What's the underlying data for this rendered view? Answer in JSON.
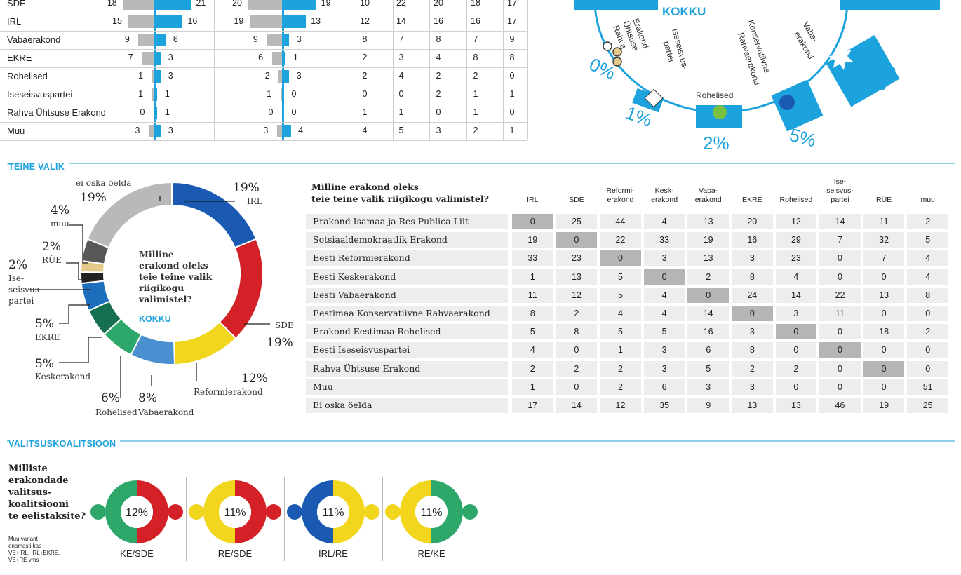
{
  "top_table": {
    "rows": [
      {
        "name": "SDE",
        "a1": "18",
        "a2": "21",
        "b1": "20",
        "b2": "19",
        "c": [
          "10",
          "22",
          "20",
          "18",
          "17"
        ]
      },
      {
        "name": "IRL",
        "a1": "15",
        "a2": "16",
        "b1": "19",
        "b2": "13",
        "c": [
          "12",
          "14",
          "16",
          "16",
          "17"
        ]
      },
      {
        "name": "Vabaerakond",
        "a1": "9",
        "a2": "6",
        "b1": "9",
        "b2": "3",
        "c": [
          "8",
          "7",
          "8",
          "7",
          "9"
        ]
      },
      {
        "name": "EKRE",
        "a1": "7",
        "a2": "3",
        "b1": "6",
        "b2": "1",
        "c": [
          "2",
          "3",
          "4",
          "8",
          "8"
        ]
      },
      {
        "name": "Rohelised",
        "a1": "1",
        "a2": "3",
        "b1": "2",
        "b2": "3",
        "c": [
          "2",
          "4",
          "2",
          "2",
          "0"
        ]
      },
      {
        "name": "Iseseisvuspartei",
        "a1": "1",
        "a2": "1",
        "b1": "1",
        "b2": "0",
        "c": [
          "0",
          "0",
          "2",
          "1",
          "1"
        ]
      },
      {
        "name": "Rahva Ühtsuse Erakond",
        "a1": "0",
        "a2": "1",
        "b1": "0",
        "b2": "0",
        "c": [
          "1",
          "1",
          "0",
          "1",
          "0"
        ]
      },
      {
        "name": "Muu",
        "a1": "3",
        "a2": "3",
        "b1": "3",
        "b2": "4",
        "c": [
          "4",
          "5",
          "3",
          "2",
          "1"
        ]
      }
    ]
  },
  "top_right": {
    "kokku": "KOKKU",
    "labels": [
      {
        "name": "Rahva Ühtsuse Erakond",
        "pct": "0%"
      },
      {
        "name": "Iseseisvus-partei",
        "pct": "1%"
      },
      {
        "name": "Rohelised",
        "pct": "2%"
      },
      {
        "name": "Konservatiivne Rahvaerakond",
        "pct": "5%"
      },
      {
        "name": "Vaba-erakond",
        "pct": "8%"
      }
    ],
    "lines": {
      "rue": [
        "Rahva",
        "Ühtsuse",
        "Erakond"
      ],
      "isp": [
        "Iseseisvus-",
        "partei"
      ],
      "roh": "Rohelised",
      "kons": [
        "Konservatiivne",
        "Rahvaerakond"
      ],
      "vaba": [
        "Vaba-",
        "erakond"
      ]
    }
  },
  "sections": {
    "teine_valik": "TEINE VALIK",
    "valitsuskoalitsioon": "VALITSUSKOALITSIOON"
  },
  "donut": {
    "center_lines": [
      "Milline",
      "erakond oleks",
      "teie teine valik",
      "riigikogu",
      "valimistel?"
    ],
    "center_kokku": "KOKKU",
    "labels": {
      "irl": {
        "pct": "19%",
        "name": "IRL"
      },
      "sde": {
        "pct": "19%",
        "name": "SDE"
      },
      "ref": {
        "pct": "12%",
        "name": "Reformierakond"
      },
      "vaba": {
        "pct": "8%",
        "name": "Vabaerakond"
      },
      "roh": {
        "pct": "6%",
        "name": "Rohelised"
      },
      "kesk": {
        "pct": "5%",
        "name": "Keskerakond"
      },
      "ekre": {
        "pct": "5%",
        "name": "EKRE"
      },
      "isp": {
        "pct": "2%",
        "lines": [
          "Ise-",
          "seisvus-",
          "partei"
        ]
      },
      "rue": {
        "pct": "2%",
        "name": "RÜE"
      },
      "muu": {
        "pct": "4%",
        "name": "muu"
      },
      "eo": {
        "pct": "19%",
        "name": "ei oska öelda"
      }
    }
  },
  "chart_data": {
    "type": "pie",
    "title": "Milline erakond oleks teie teine valik riigikogu valimistel?",
    "categories": [
      "IRL",
      "SDE",
      "Reformierakond",
      "Vabaerakond",
      "Rohelised",
      "Keskerakond",
      "EKRE",
      "Iseseisvuspartei",
      "RÜE",
      "muu",
      "ei oska öelda"
    ],
    "values": [
      19,
      19,
      12,
      8,
      6,
      5,
      5,
      2,
      2,
      4,
      19
    ],
    "colors": [
      "#1a5ab2",
      "#d42027",
      "#f1d61d",
      "#4a90d0",
      "#2ea86a",
      "#166f4f",
      "#1d6fbd",
      "#222222",
      "#e3c98a",
      "#585858",
      "#b9b9b9"
    ]
  },
  "matrix": {
    "question": [
      "Milline erakond oleks",
      "teie teine valik riigikogu valimistel?"
    ],
    "columns": [
      [
        "IRL"
      ],
      [
        "SDE"
      ],
      [
        "Reformi-",
        "erakond"
      ],
      [
        "Kesk-",
        "erakond"
      ],
      [
        "Vaba-",
        "erakond"
      ],
      [
        "EKRE"
      ],
      [
        "Rohelised"
      ],
      [
        "Ise-",
        "seisvus-",
        "partei"
      ],
      [
        "RÜE"
      ],
      [
        "muu"
      ]
    ],
    "rows": [
      {
        "label": "Erakond Isamaa ja Res Publica Liit",
        "values": [
          "0",
          "25",
          "44",
          "4",
          "13",
          "20",
          "12",
          "14",
          "11",
          "2"
        ]
      },
      {
        "label": "Sotsiaaldemokraatlik Erakond",
        "values": [
          "19",
          "0",
          "22",
          "33",
          "19",
          "16",
          "29",
          "7",
          "32",
          "5"
        ]
      },
      {
        "label": "Eesti Reformierakond",
        "values": [
          "33",
          "23",
          "0",
          "3",
          "13",
          "3",
          "23",
          "0",
          "7",
          "4"
        ]
      },
      {
        "label": "Eesti Keskerakond",
        "values": [
          "1",
          "13",
          "5",
          "0",
          "2",
          "8",
          "4",
          "0",
          "0",
          "4"
        ]
      },
      {
        "label": "Eesti Vabaerakond",
        "values": [
          "11",
          "12",
          "5",
          "4",
          "0",
          "24",
          "14",
          "22",
          "13",
          "8"
        ]
      },
      {
        "label": "Eestimaa Konservatiivne Rahvaerakond",
        "values": [
          "8",
          "2",
          "4",
          "4",
          "14",
          "0",
          "3",
          "11",
          "0",
          "0"
        ]
      },
      {
        "label": "Erakond Eestimaa Rohelised",
        "values": [
          "5",
          "8",
          "5",
          "5",
          "16",
          "3",
          "0",
          "0",
          "18",
          "2"
        ]
      },
      {
        "label": "Eesti Iseseisvuspartei",
        "values": [
          "4",
          "0",
          "1",
          "3",
          "6",
          "8",
          "0",
          "0",
          "0",
          "0"
        ]
      },
      {
        "label": "Rahva Ühtsuse Erakond",
        "values": [
          "2",
          "2",
          "2",
          "3",
          "5",
          "2",
          "2",
          "0",
          "0",
          "0"
        ]
      },
      {
        "label": "Muu",
        "values": [
          "1",
          "0",
          "2",
          "6",
          "3",
          "3",
          "0",
          "0",
          "0",
          "51"
        ]
      },
      {
        "label": "Ei oska öelda",
        "values": [
          "17",
          "14",
          "12",
          "35",
          "9",
          "13",
          "13",
          "46",
          "19",
          "25"
        ]
      }
    ],
    "diagonal": [
      [
        0,
        0
      ],
      [
        1,
        1
      ],
      [
        2,
        2
      ],
      [
        3,
        3
      ],
      [
        4,
        4
      ],
      [
        5,
        5
      ],
      [
        6,
        6
      ],
      [
        7,
        7
      ],
      [
        8,
        8
      ]
    ]
  },
  "coalition": {
    "question": [
      "Milliste",
      "erakondade",
      "valitsus-",
      "koalitsiooni",
      "te eelistaksite?"
    ],
    "note": [
      "Muu variant",
      "enamasti kas",
      "VE+IRL, IRL+EKRE,",
      "VE+RE vms"
    ],
    "items": [
      {
        "label": "KE/SDE",
        "pct": "12%",
        "left": "#2ea86a",
        "right": "#d42027"
      },
      {
        "label": "RE/SDE",
        "pct": "11%",
        "left": "#f1d61d",
        "right": "#d42027"
      },
      {
        "label": "IRL/RE",
        "pct": "11%",
        "left": "#1a5ab2",
        "right": "#f1d61d"
      },
      {
        "label": "RE/KE",
        "pct": "11%",
        "left": "#f1d61d",
        "right": "#2ea86a"
      }
    ]
  }
}
